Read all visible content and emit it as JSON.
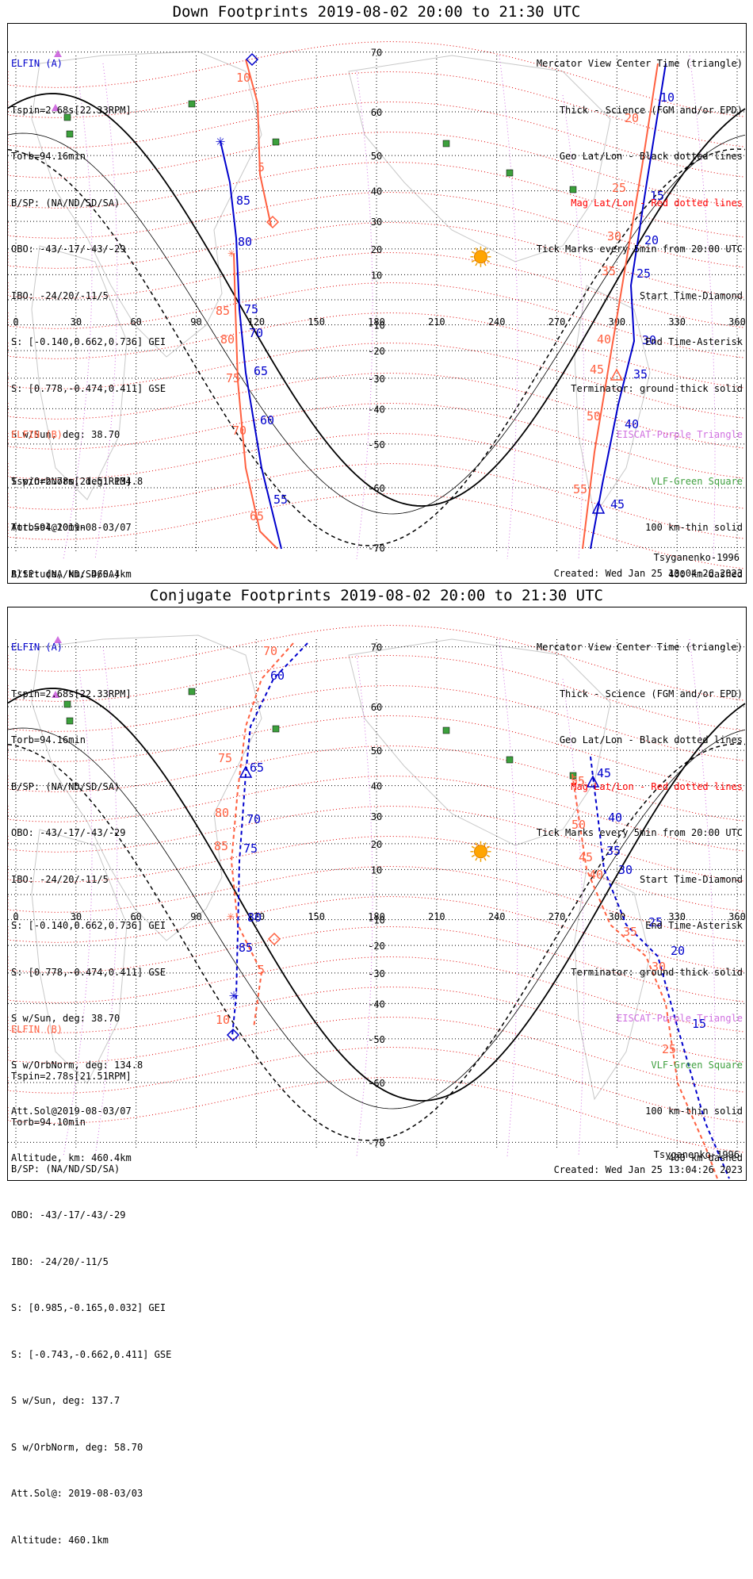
{
  "panels": [
    {
      "title": "Down Footprints 2019-08-02 20:00 to 21:30 UTC",
      "mode": "down",
      "lat_labels": [
        "70",
        "60",
        "50",
        "40",
        "30",
        "20",
        "10",
        "-10",
        "-20",
        "-30",
        "-40",
        "-50",
        "-60",
        "-70"
      ]
    },
    {
      "title": "Conjugate Footprints 2019-08-02 20:00 to 21:30 UTC",
      "mode": "conjugate",
      "lat_labels": [
        "70",
        "60",
        "50",
        "40",
        "30",
        "20",
        "10",
        "-10",
        "-20",
        "-30",
        "-40",
        "-50",
        "-60",
        "-70"
      ]
    }
  ],
  "elfin_a": {
    "label": "ELFIN (A)",
    "lines": [
      "Tspin=2.68s[22.33RPM]",
      "Torb=94.16min",
      "B/SP: (NA/ND/SD/SA)",
      "OBO: -43/-17/-43/-29",
      "IBO: -24/20/-11/5",
      "S: [-0.140,0.662,0.736] GEI",
      "S: [0.778,-0.474,0.411] GSE",
      "S w/Sun, deg: 38.70",
      "S w/OrbNorm, deg: 134.8",
      "Att.Sol@2019-08-03/07",
      "Altitude, km: 460.4km"
    ]
  },
  "elfin_b": {
    "label": "ELFIN (B)",
    "lines": [
      "Tspin=2.78s[21.51RPM]",
      "Torb=94.10min",
      "B/SP: (NA/ND/SD/SA)",
      "OBO: -43/-17/-43/-29",
      "IBO: -24/20/-11/5",
      "S: [0.985,-0.165,0.032] GEI",
      "S: [-0.743,-0.662,0.411] GSE",
      "S w/Sun, deg: 137.7",
      "S w/OrbNorm, deg: 58.70",
      "Att.Sol@: 2019-08-03/03",
      "Altitude: 460.1km"
    ]
  },
  "legend": {
    "view_center": "Mercator View Center Time (triangle)",
    "thick": "Thick - Science (FGM and/or EPD)",
    "geo": "Geo Lat/Lon - Black dotted lines",
    "mag": "Mag Lat/Lon - Red dotted lines",
    "ticks": "Tick Marks every 5min from 20:00 UTC",
    "start": "Start Time-Diamond",
    "end": "End Time-Asterisk",
    "terminator": "Terminator: ground-thick solid",
    "eiscat": "EISCAT-Purple Triangle",
    "vlf": "VLF-Green Square",
    "km100": "100 km-thin solid",
    "km400": "400 km-dashed"
  },
  "model": "Tsyganenko-1996",
  "created": "Created: Wed Jan 25 13:04:26 2023",
  "chart_data": [
    {
      "type": "scatter",
      "title": "Down Footprints 2019-08-02 20:00 to 21:30 UTC",
      "xlim": [
        0,
        360
      ],
      "ylim": [
        -80,
        80
      ],
      "x_ticks": [
        0,
        30,
        60,
        90,
        120,
        150,
        180,
        210,
        240,
        270,
        300,
        330,
        360
      ],
      "series": [
        {
          "name": "ELFIN (A)",
          "color": "#0000cc",
          "tick_labels": [
            "10",
            "15",
            "20",
            "25",
            "30",
            "35",
            "40",
            "45"
          ]
        },
        {
          "name": "ELFIN (B)",
          "color": "#ff6040",
          "tick_labels": [
            "5",
            "10",
            "20",
            "25",
            "30",
            "35",
            "40",
            "45",
            "50",
            "55",
            "65",
            "70",
            "75",
            "80",
            "85"
          ]
        },
        {
          "name": "ELFIN (A)",
          "color": "#0000cc",
          "tick_labels": [
            "55",
            "60",
            "65",
            "70",
            "75",
            "80",
            "85"
          ]
        }
      ]
    },
    {
      "type": "scatter",
      "title": "Conjugate Footprints 2019-08-02 20:00 to 21:30 UTC",
      "xlim": [
        0,
        360
      ],
      "ylim": [
        -80,
        80
      ],
      "x_ticks": [
        0,
        30,
        60,
        90,
        120,
        150,
        180,
        210,
        240,
        270,
        300,
        330,
        360
      ],
      "series": [
        {
          "name": "ELFIN (A)",
          "color": "#0000cc",
          "tick_labels": [
            "15",
            "20",
            "25",
            "30",
            "35",
            "40",
            "45",
            "60",
            "65",
            "70",
            "75",
            "80",
            "85"
          ]
        },
        {
          "name": "ELFIN (B)",
          "color": "#ff6040",
          "tick_labels": [
            "5",
            "10",
            "25",
            "30",
            "35",
            "40",
            "45",
            "50",
            "55",
            "70",
            "75",
            "80",
            "85"
          ]
        }
      ]
    }
  ]
}
